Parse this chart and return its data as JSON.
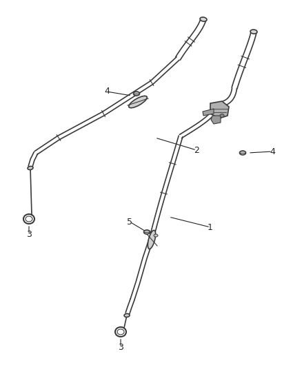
{
  "background_color": "#ffffff",
  "line_color": "#3a3a3a",
  "label_color": "#222222",
  "fig_width": 4.38,
  "fig_height": 5.33,
  "dpi": 100,
  "tube_lw": 1.2,
  "tube_color": "#3a3a3a",
  "label_fontsize": 9
}
